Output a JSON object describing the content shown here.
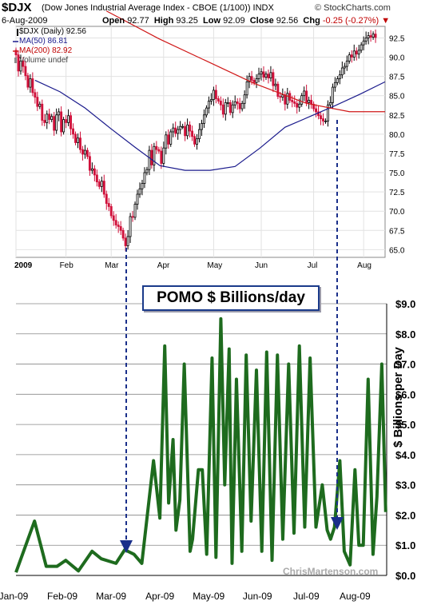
{
  "header": {
    "symbol": "$DJX",
    "subtitle": "(Dow Jones Industrial Average Index - CBOE (1/100))  INDX",
    "brand": "© StockCharts.com",
    "date": "6-Aug-2009",
    "open_label": "Open",
    "open": "92.77",
    "high_label": "High",
    "high": "93.25",
    "low_label": "Low",
    "low": "92.09",
    "close_label": "Close",
    "close": "92.56",
    "chg_label": "Chg",
    "chg": "-0.25 (-0.27%)"
  },
  "legend": {
    "price": "$DJX (Daily) 92.56",
    "ma50": "MA(50) 86.81",
    "ma200": "MA(200) 82.92",
    "volume": "Volume undef"
  },
  "annotation": {
    "pomo_label": "POMO $ Billions/day",
    "watermark": "ChrisMartenson.com"
  },
  "colors": {
    "up": "#000000",
    "down": "#d0103a",
    "ma50": "#1a1a8c",
    "ma200": "#d01818",
    "pomo": "#1e6b1e",
    "arrow": "#1a2f8a"
  },
  "chart_data": [
    {
      "type": "line",
      "title": "$DJX (Daily)",
      "x_tick_labels": [
        "2009",
        "Feb",
        "Mar",
        "Apr",
        "May",
        "Jun",
        "Jul",
        "Aug"
      ],
      "y_ticks": [
        65.0,
        67.5,
        70.0,
        72.5,
        75.0,
        77.5,
        80.0,
        82.5,
        85.0,
        87.5,
        90.0,
        92.5
      ],
      "ylim": [
        64,
        94
      ],
      "xlim": [
        0,
        155
      ],
      "month_positions": [
        0,
        21,
        40,
        62,
        83,
        103,
        125,
        146
      ],
      "series": [
        {
          "name": "$DJX (Daily)",
          "values": [
            90.3,
            88.2,
            89.5,
            88.8,
            87.6,
            86.1,
            87.2,
            85.4,
            84.8,
            83.6,
            83.9,
            81.8,
            81.5,
            82.6,
            81.9,
            82.3,
            80.5,
            82.5,
            82.9,
            80.3,
            81.9,
            81.5,
            82.4,
            80.7,
            80.0,
            78.9,
            79.5,
            78.0,
            77.4,
            77.9,
            77.1,
            75.3,
            75.5,
            74.7,
            73.8,
            73.2,
            73.9,
            72.2,
            71.0,
            70.6,
            69.4,
            68.8,
            68.2,
            68.0,
            67.5,
            66.5,
            65.5,
            66.7,
            69.3,
            69.2,
            70.9,
            72.2,
            72.9,
            73.6,
            75.0,
            75.4,
            77.9,
            76.0,
            78.4,
            78.0,
            77.8,
            76.2,
            78.2,
            79.9,
            78.7,
            80.3,
            80.8,
            80.1,
            80.6,
            81.0,
            81.0,
            79.8,
            81.2,
            80.4,
            79.7,
            78.7,
            79.4,
            80.6,
            81.4,
            82.5,
            83.4,
            84.3,
            84.5,
            85.7,
            84.6,
            84.3,
            83.8,
            82.6,
            84.1,
            84.1,
            82.8,
            83.8,
            84.2,
            84.0,
            83.3,
            84.0,
            85.1,
            86.8,
            87.5,
            87.0,
            86.7,
            87.2,
            87.8,
            88.1,
            87.4,
            87.8,
            87.3,
            88.0,
            86.3,
            86.5,
            84.9,
            84.8,
            85.1,
            83.9,
            85.3,
            84.4,
            84.2,
            84.0,
            83.5,
            83.9,
            85.0,
            85.6,
            84.1,
            84.4,
            83.9,
            83.3,
            82.9,
            82.4,
            82.0,
            81.7,
            81.7,
            83.8,
            84.1,
            86.1,
            86.7,
            87.2,
            87.7,
            88.6,
            88.8,
            89.5,
            90.3,
            90.0,
            90.8,
            90.4,
            90.9,
            91.6,
            92.1,
            92.5,
            92.8,
            92.6,
            93.0,
            92.56
          ]
        },
        {
          "name": "MA(50)",
          "values": [
            87.0,
            85.5,
            83.4,
            80.8,
            78.3,
            75.9,
            75.3,
            75.3,
            75.8,
            78.2,
            80.9,
            82.3,
            83.7,
            85.2,
            86.8
          ]
        },
        {
          "name": "MA(200)",
          "values": [
            96.0,
            92.4,
            89.5,
            86.6,
            84.0,
            82.92,
            82.92
          ]
        }
      ]
    },
    {
      "type": "line",
      "title": "POMO $ Billions/day",
      "ylabel": "$ Billions per Day",
      "x_tick_labels": [
        "Jan-09",
        "Feb-09",
        "Mar-09",
        "Apr-09",
        "May-09",
        "Jun-09",
        "Jul-09",
        "Aug-09"
      ],
      "y_tick_labels": [
        "$0.0",
        "$1.0",
        "$2.0",
        "$3.0",
        "$4.0",
        "$5.0",
        "$6.0",
        "$7.0",
        "$8.0",
        "$9.0"
      ],
      "ylim": [
        0,
        9
      ],
      "xlim": [
        0,
        7.6
      ],
      "series": [
        {
          "name": "POMO",
          "x": [
            0.0,
            0.38,
            0.62,
            0.84,
            1.02,
            1.28,
            1.56,
            1.75,
            2.05,
            2.23,
            2.42,
            2.58,
            2.82,
            2.95,
            3.05,
            3.13,
            3.22,
            3.28,
            3.36,
            3.45,
            3.57,
            3.62,
            3.74,
            3.82,
            3.91,
            4.02,
            4.1,
            4.2,
            4.28,
            4.37,
            4.43,
            4.52,
            4.63,
            4.72,
            4.82,
            4.93,
            5.04,
            5.14,
            5.25,
            5.36,
            5.47,
            5.59,
            5.7,
            5.81,
            5.92,
            6.03,
            6.15,
            6.28,
            6.38,
            6.45,
            6.53,
            6.64,
            6.73,
            6.85,
            6.95,
            7.03,
            7.12,
            7.22,
            7.32,
            7.4,
            7.5,
            7.58
          ],
          "y": [
            0.1,
            1.8,
            0.3,
            0.3,
            0.5,
            0.15,
            0.8,
            0.55,
            0.4,
            0.85,
            0.7,
            0.4,
            3.8,
            1.9,
            7.6,
            2.4,
            4.5,
            1.5,
            2.5,
            7.0,
            0.8,
            1.2,
            3.5,
            3.5,
            0.7,
            7.2,
            0.6,
            8.5,
            3.0,
            7.5,
            0.4,
            6.5,
            0.8,
            7.3,
            1.8,
            6.8,
            0.8,
            7.4,
            0.5,
            7.3,
            1.2,
            7.0,
            1.4,
            7.6,
            1.6,
            7.2,
            1.6,
            3.0,
            1.5,
            1.2,
            1.6,
            3.8,
            0.8,
            0.35,
            3.5,
            1.0,
            1.0,
            6.5,
            0.7,
            2.6,
            7.0,
            2.1
          ]
        }
      ]
    }
  ]
}
